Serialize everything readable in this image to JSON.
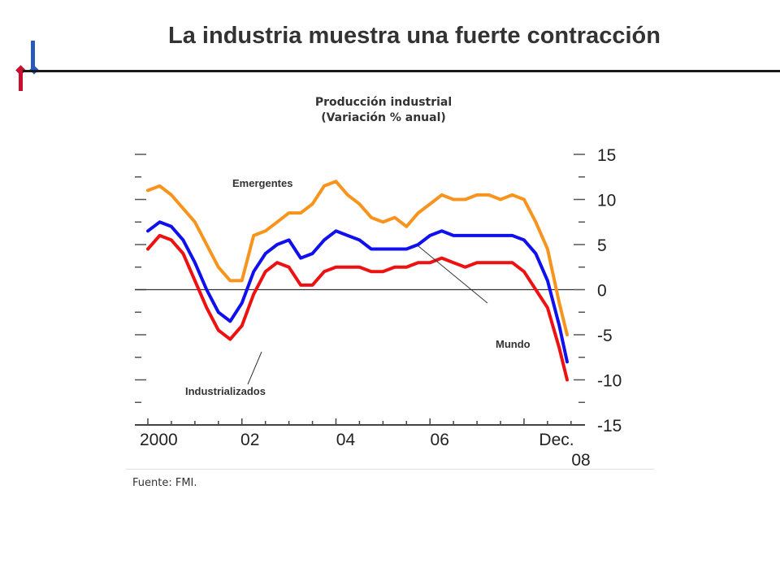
{
  "slide": {
    "title": "La industria muestra una fuerte contracción",
    "source": "Fuente: FMI."
  },
  "colors": {
    "emergentes": "#f7941d",
    "mundo": "#1010ee",
    "industrializados": "#ee1111",
    "logo_red": "#c8102e",
    "logo_blue": "#2a5ab8"
  },
  "chart_data": {
    "type": "line",
    "title": "Producción industrial",
    "subtitle": "(Variación % anual)",
    "x_tick_labels": [
      "2000",
      "02",
      "04",
      "06",
      "Dec.",
      "08"
    ],
    "x_range": [
      "2000-01",
      "2008-12"
    ],
    "y_right_tick_labels": [
      "15",
      "10",
      "5",
      "0",
      "-5",
      "-10",
      "-15"
    ],
    "ylim": [
      -15,
      15
    ],
    "zero_line": true,
    "annotations": [
      "Emergentes",
      "Mundo",
      "Industrializados"
    ],
    "series": [
      {
        "name": "Emergentes",
        "x": [
          "2000-01",
          "2000-04",
          "2000-07",
          "2000-10",
          "2001-01",
          "2001-04",
          "2001-07",
          "2001-10",
          "2002-01",
          "2002-04",
          "2002-07",
          "2002-10",
          "2003-01",
          "2003-04",
          "2003-07",
          "2003-10",
          "2004-01",
          "2004-04",
          "2004-07",
          "2004-10",
          "2005-01",
          "2005-04",
          "2005-07",
          "2005-10",
          "2006-01",
          "2006-04",
          "2006-07",
          "2006-10",
          "2007-01",
          "2007-04",
          "2007-07",
          "2007-10",
          "2008-01",
          "2008-04",
          "2008-07",
          "2008-10",
          "2008-12"
        ],
        "values": [
          11.0,
          11.5,
          10.5,
          9.0,
          7.5,
          5.0,
          2.5,
          1.0,
          1.0,
          6.0,
          6.5,
          7.5,
          8.5,
          8.5,
          9.5,
          11.5,
          12.0,
          10.5,
          9.5,
          8.0,
          7.5,
          8.0,
          7.0,
          8.5,
          9.5,
          10.5,
          10.0,
          10.0,
          10.5,
          10.5,
          10.0,
          10.5,
          10.0,
          7.5,
          4.5,
          -1.5,
          -5.0
        ]
      },
      {
        "name": "Mundo",
        "x": [
          "2000-01",
          "2000-04",
          "2000-07",
          "2000-10",
          "2001-01",
          "2001-04",
          "2001-07",
          "2001-10",
          "2002-01",
          "2002-04",
          "2002-07",
          "2002-10",
          "2003-01",
          "2003-04",
          "2003-07",
          "2003-10",
          "2004-01",
          "2004-04",
          "2004-07",
          "2004-10",
          "2005-01",
          "2005-04",
          "2005-07",
          "2005-10",
          "2006-01",
          "2006-04",
          "2006-07",
          "2006-10",
          "2007-01",
          "2007-04",
          "2007-07",
          "2007-10",
          "2008-01",
          "2008-04",
          "2008-07",
          "2008-10",
          "2008-12"
        ],
        "values": [
          6.5,
          7.5,
          7.0,
          5.5,
          3.0,
          0.0,
          -2.5,
          -3.5,
          -1.5,
          2.0,
          4.0,
          5.0,
          5.5,
          3.5,
          4.0,
          5.5,
          6.5,
          6.0,
          5.5,
          4.5,
          4.5,
          4.5,
          4.5,
          5.0,
          6.0,
          6.5,
          6.0,
          6.0,
          6.0,
          6.0,
          6.0,
          6.0,
          5.5,
          4.0,
          1.0,
          -4.0,
          -8.0
        ]
      },
      {
        "name": "Industrializados",
        "x": [
          "2000-01",
          "2000-04",
          "2000-07",
          "2000-10",
          "2001-01",
          "2001-04",
          "2001-07",
          "2001-10",
          "2002-01",
          "2002-04",
          "2002-07",
          "2002-10",
          "2003-01",
          "2003-04",
          "2003-07",
          "2003-10",
          "2004-01",
          "2004-04",
          "2004-07",
          "2004-10",
          "2005-01",
          "2005-04",
          "2005-07",
          "2005-10",
          "2006-01",
          "2006-04",
          "2006-07",
          "2006-10",
          "2007-01",
          "2007-04",
          "2007-07",
          "2007-10",
          "2008-01",
          "2008-04",
          "2008-07",
          "2008-10",
          "2008-12"
        ],
        "values": [
          4.5,
          6.0,
          5.5,
          4.0,
          1.0,
          -2.0,
          -4.5,
          -5.5,
          -4.0,
          -0.5,
          2.0,
          3.0,
          2.5,
          0.5,
          0.5,
          2.0,
          2.5,
          2.5,
          2.5,
          2.0,
          2.0,
          2.5,
          2.5,
          3.0,
          3.0,
          3.5,
          3.0,
          2.5,
          3.0,
          3.0,
          3.0,
          3.0,
          2.0,
          0.0,
          -2.0,
          -6.5,
          -10.0
        ]
      }
    ]
  }
}
